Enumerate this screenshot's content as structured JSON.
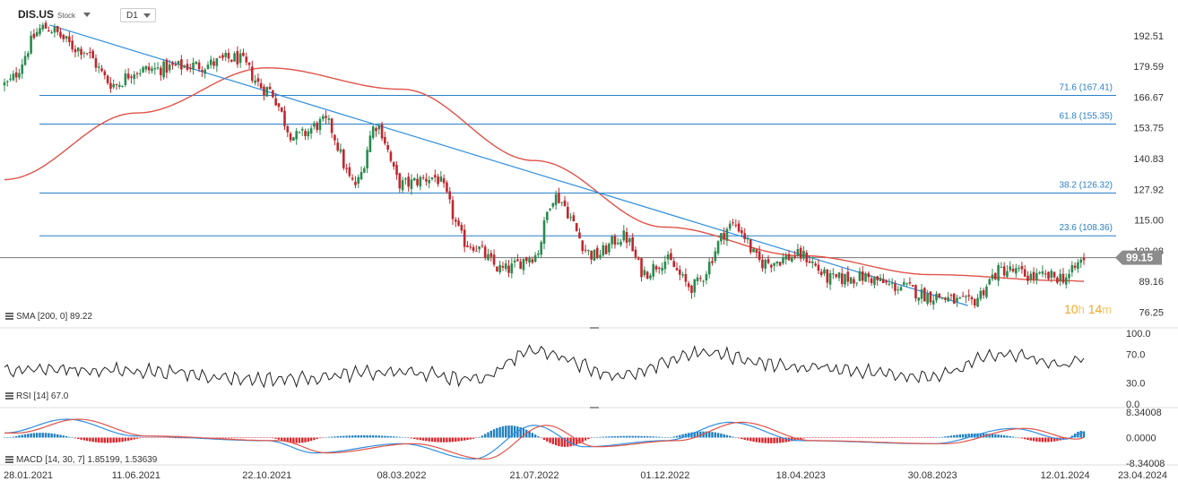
{
  "header": {
    "symbol": "DIS.US",
    "type": "Stock",
    "timeframe": "D1"
  },
  "countdown": {
    "h_value": "10",
    "h_unit": "h",
    "m_value": "14",
    "m_unit": "m"
  },
  "colors": {
    "up": "#2a8b4f",
    "down": "#c0272d",
    "sma": "#e0534a",
    "trend": "#2f8fe0",
    "fib": "#2a7fc8",
    "rsi": "#222222",
    "macd_line": "#2f8fe0",
    "signal_line": "#e0534a",
    "hist_pos": "#1f7fbf",
    "hist_neg": "#d9262c",
    "price_tag": "#8c8c8c"
  },
  "price_axis": {
    "ticks": [
      "192.51",
      "179.59",
      "166.67",
      "153.75",
      "140.83",
      "127.92",
      "115.00",
      "102.08",
      "89.16",
      "76.25"
    ]
  },
  "rsi_axis": {
    "ticks": [
      "100.0",
      "70.0",
      "30.0",
      "0.0"
    ]
  },
  "macd_axis": {
    "ticks": [
      "8.34008",
      "0.0000",
      "-8.34008"
    ]
  },
  "x_axis": {
    "ticks": [
      "28.01.2021",
      "11.06.2021",
      "22.10.2021",
      "08.03.2022",
      "21.07.2022",
      "01.12.2022",
      "18.04.2023",
      "30.08.2023",
      "12.01.2024",
      "23.04.2024"
    ]
  },
  "indicators": {
    "sma_label": "SMA [200, 0] 89.22",
    "rsi_label": "RSI [14] 67.0",
    "macd_label": "MACD [14, 30, 7] 1.85199, 1.53639"
  },
  "current_price": "99.15",
  "chart_data": [
    {
      "type": "candlestick",
      "ylim": [
        70,
        200
      ],
      "last_price": 99.15,
      "close_series": [
        {
          "date": "2021-01-28",
          "close": 172
        },
        {
          "date": "2021-03-10",
          "close": 196
        },
        {
          "date": "2021-04-15",
          "close": 187
        },
        {
          "date": "2021-05-20",
          "close": 172
        },
        {
          "date": "2021-06-11",
          "close": 178
        },
        {
          "date": "2021-08-15",
          "close": 180
        },
        {
          "date": "2021-09-20",
          "close": 183
        },
        {
          "date": "2021-10-22",
          "close": 170
        },
        {
          "date": "2021-11-20",
          "close": 150
        },
        {
          "date": "2021-12-20",
          "close": 156
        },
        {
          "date": "2022-01-20",
          "close": 130
        },
        {
          "date": "2022-02-10",
          "close": 155
        },
        {
          "date": "2022-03-08",
          "close": 130
        },
        {
          "date": "2022-04-10",
          "close": 133
        },
        {
          "date": "2022-05-15",
          "close": 105
        },
        {
          "date": "2022-06-20",
          "close": 94
        },
        {
          "date": "2022-07-21",
          "close": 100
        },
        {
          "date": "2022-08-10",
          "close": 125
        },
        {
          "date": "2022-09-20",
          "close": 100
        },
        {
          "date": "2022-10-20",
          "close": 108
        },
        {
          "date": "2022-11-10",
          "close": 93
        },
        {
          "date": "2022-12-01",
          "close": 98
        },
        {
          "date": "2022-12-28",
          "close": 87
        },
        {
          "date": "2023-02-09",
          "close": 113
        },
        {
          "date": "2023-03-10",
          "close": 97
        },
        {
          "date": "2023-04-18",
          "close": 100
        },
        {
          "date": "2023-05-20",
          "close": 90
        },
        {
          "date": "2023-06-20",
          "close": 91
        },
        {
          "date": "2023-07-25",
          "close": 87
        },
        {
          "date": "2023-08-30",
          "close": 83
        },
        {
          "date": "2023-10-05",
          "close": 80
        },
        {
          "date": "2023-11-10",
          "close": 94
        },
        {
          "date": "2023-12-15",
          "close": 91
        },
        {
          "date": "2024-01-12",
          "close": 91
        },
        {
          "date": "2024-02-02",
          "close": 99
        }
      ],
      "series": [
        {
          "name": "SMA [200, 0]",
          "points": [
            {
              "date": "2021-01-28",
              "value": 132
            },
            {
              "date": "2021-06-11",
              "value": 160
            },
            {
              "date": "2021-10-22",
              "value": 179
            },
            {
              "date": "2022-03-08",
              "value": 170
            },
            {
              "date": "2022-07-21",
              "value": 140
            },
            {
              "date": "2022-12-01",
              "value": 112
            },
            {
              "date": "2023-04-18",
              "value": 100
            },
            {
              "date": "2023-08-30",
              "value": 92
            },
            {
              "date": "2024-01-12",
              "value": 89.5
            },
            {
              "date": "2024-02-02",
              "value": 89.22
            }
          ]
        }
      ],
      "trendline": [
        {
          "date": "2021-03-15",
          "value": 197
        },
        {
          "date": "2023-10-05",
          "value": 79
        }
      ],
      "fib_levels": [
        {
          "label": "71.6 (167.41)",
          "value": 167.41
        },
        {
          "label": "61.8 (155.35)",
          "value": 155.35
        },
        {
          "label": "38.2 (126.32)",
          "value": 126.32
        },
        {
          "label": "23.6 (108.36)",
          "value": 108.36
        }
      ]
    },
    {
      "type": "line",
      "ylim": [
        0,
        100
      ],
      "last_value": 67.0,
      "anchors": [
        {
          "date": "2021-01-28",
          "value": 50
        },
        {
          "date": "2021-06-11",
          "value": 47
        },
        {
          "date": "2021-10-22",
          "value": 35
        },
        {
          "date": "2022-03-08",
          "value": 45
        },
        {
          "date": "2022-05-20",
          "value": 35
        },
        {
          "date": "2022-07-21",
          "value": 75
        },
        {
          "date": "2022-10-20",
          "value": 40
        },
        {
          "date": "2023-01-05",
          "value": 72
        },
        {
          "date": "2023-04-18",
          "value": 52
        },
        {
          "date": "2023-08-30",
          "value": 40
        },
        {
          "date": "2023-11-10",
          "value": 70
        },
        {
          "date": "2024-01-12",
          "value": 55
        },
        {
          "date": "2024-02-02",
          "value": 67
        }
      ]
    },
    {
      "type": "line",
      "ylim": [
        -8.34008,
        8.34008
      ],
      "last_values": {
        "macd": 1.85199,
        "signal": 1.53639
      },
      "anchors": [
        {
          "date": "2021-01-28",
          "value": 1.5
        },
        {
          "date": "2021-04-01",
          "value": 6
        },
        {
          "date": "2021-06-11",
          "value": 0.5
        },
        {
          "date": "2021-10-22",
          "value": -1
        },
        {
          "date": "2021-12-10",
          "value": -5
        },
        {
          "date": "2022-03-08",
          "value": -2
        },
        {
          "date": "2022-05-20",
          "value": -7
        },
        {
          "date": "2022-07-21",
          "value": 4
        },
        {
          "date": "2022-09-10",
          "value": -3
        },
        {
          "date": "2022-12-01",
          "value": -1
        },
        {
          "date": "2023-02-05",
          "value": 5
        },
        {
          "date": "2023-04-18",
          "value": -1
        },
        {
          "date": "2023-08-30",
          "value": -2
        },
        {
          "date": "2023-11-20",
          "value": 3
        },
        {
          "date": "2024-01-12",
          "value": -0.5
        },
        {
          "date": "2024-02-02",
          "value": 1.85
        }
      ]
    }
  ]
}
